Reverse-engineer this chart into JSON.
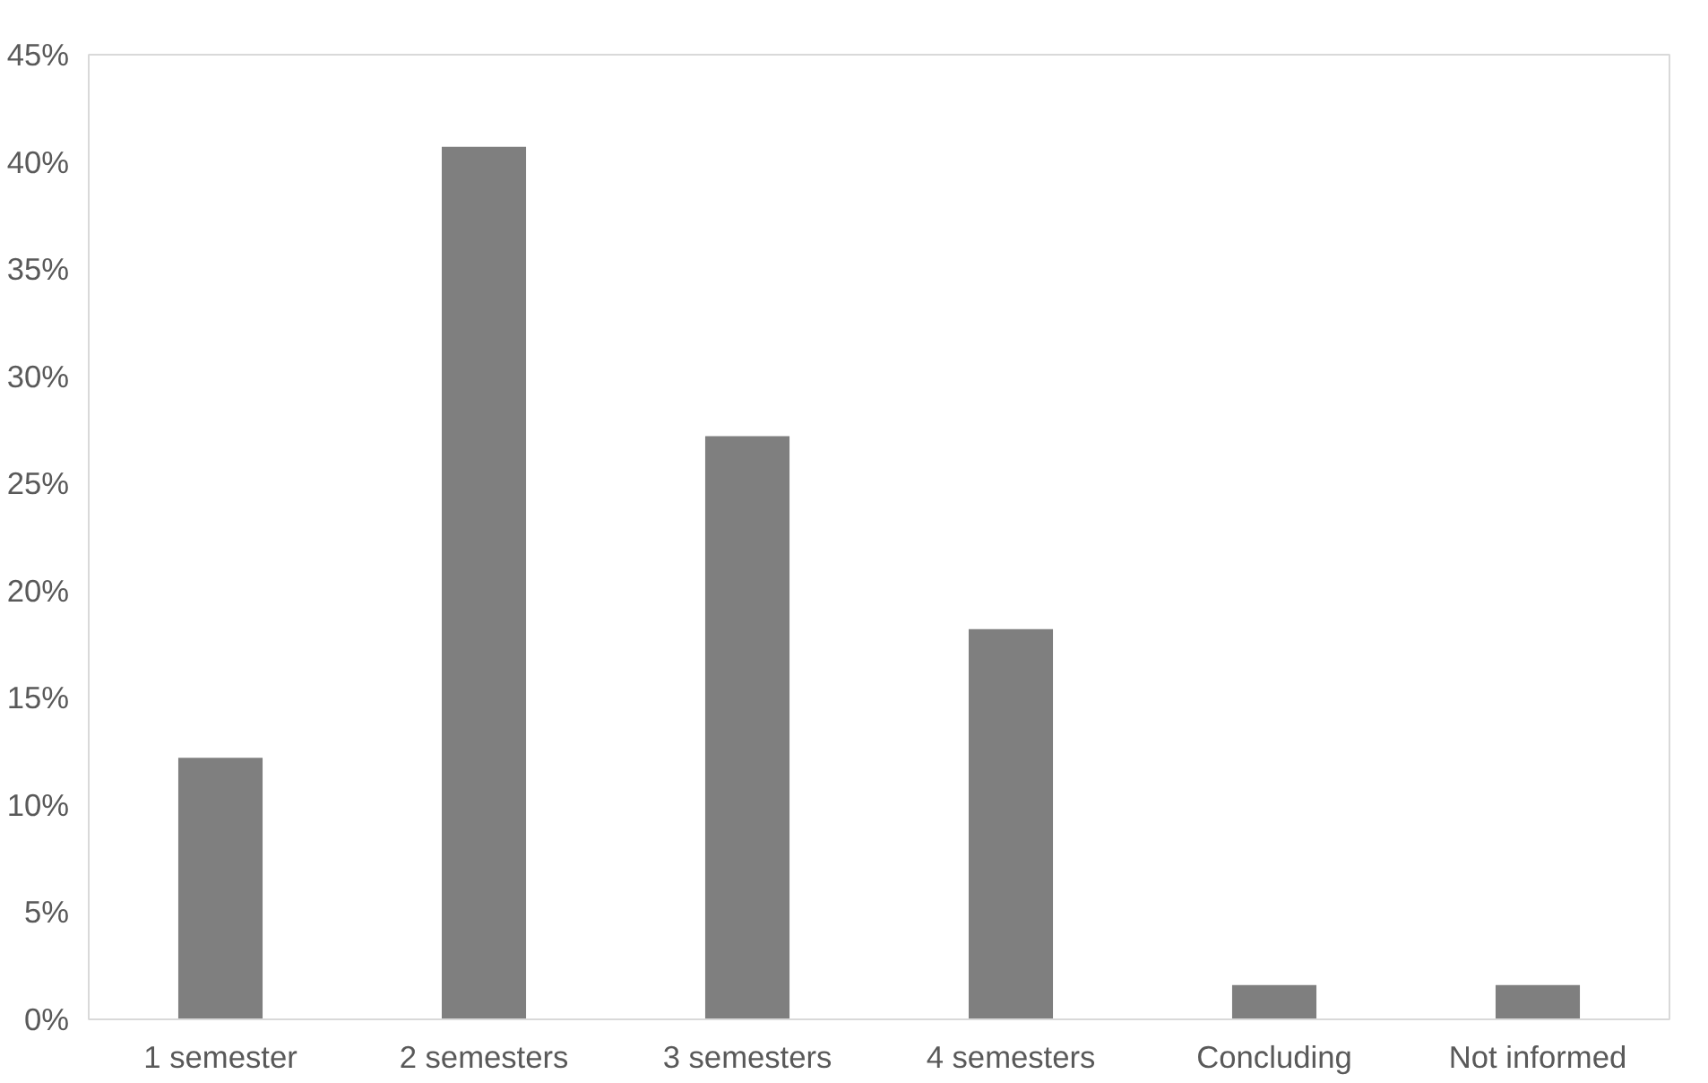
{
  "chart_data": {
    "type": "bar",
    "categories": [
      "1 semester",
      "2 semesters",
      "3 semesters",
      "4 semesters",
      "Concluding",
      "Not informed"
    ],
    "values": [
      12.2,
      40.7,
      27.2,
      18.2,
      1.6,
      1.6
    ],
    "color": "#7f7f7f",
    "ylim": [
      0,
      45
    ],
    "yticks": [
      {
        "value": 0,
        "label": "0%"
      },
      {
        "value": 5,
        "label": "5%"
      },
      {
        "value": 10,
        "label": "10%"
      },
      {
        "value": 15,
        "label": "15%"
      },
      {
        "value": 20,
        "label": "20%"
      },
      {
        "value": 25,
        "label": "25%"
      },
      {
        "value": 30,
        "label": "30%"
      },
      {
        "value": 35,
        "label": "35%"
      },
      {
        "value": 40,
        "label": "40%"
      },
      {
        "value": 45,
        "label": "45%"
      }
    ],
    "grid": false
  }
}
